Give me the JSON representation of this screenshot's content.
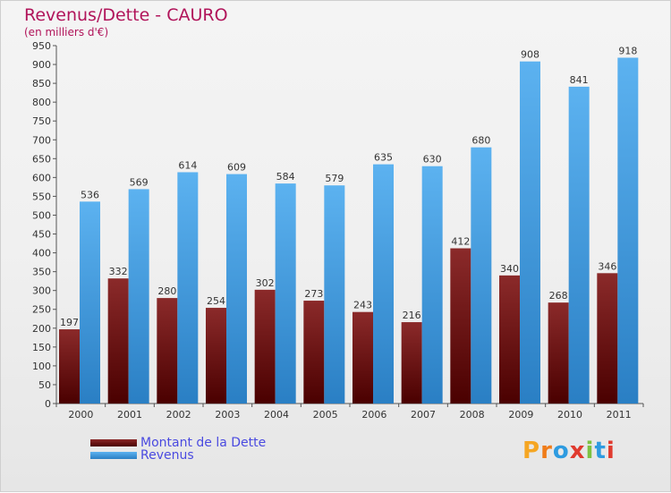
{
  "chart_data": {
    "type": "bar",
    "title": "Revenus/Dette - CAURO",
    "subtitle": "(en milliers d'€)",
    "categories": [
      "2000",
      "2001",
      "2002",
      "2003",
      "2004",
      "2005",
      "2006",
      "2007",
      "2008",
      "2009",
      "2010",
      "2011"
    ],
    "series": [
      {
        "name": "Montant de la Dette",
        "color": "#7a1f1f",
        "values": [
          197,
          332,
          280,
          254,
          302,
          273,
          243,
          216,
          412,
          340,
          268,
          346
        ]
      },
      {
        "name": "Revenus",
        "color": "#3f9fe6",
        "values": [
          536,
          569,
          614,
          609,
          584,
          579,
          635,
          630,
          680,
          908,
          841,
          918
        ]
      }
    ],
    "ylim": [
      0,
      950
    ],
    "yticks": [
      0,
      50,
      100,
      150,
      200,
      250,
      300,
      350,
      400,
      450,
      500,
      550,
      600,
      650,
      700,
      750,
      800,
      850,
      900,
      950
    ],
    "grid": false,
    "legend": "bottom-left"
  },
  "logo": {
    "text": "Proxiti"
  }
}
